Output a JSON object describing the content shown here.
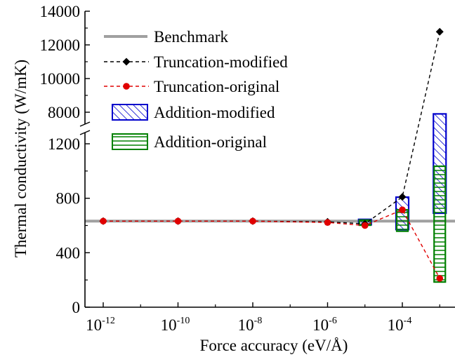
{
  "chart_data": {
    "type": "line",
    "xlabel": "Force accuracy (eV/Å)",
    "ylabel": "Thermal conductivity (W/mK)",
    "x_scale": "log",
    "x_ticks": [
      {
        "value": 1e-12,
        "base": "10",
        "exp": "-12"
      },
      {
        "value": 1e-10,
        "base": "10",
        "exp": "-10"
      },
      {
        "value": 1e-08,
        "base": "10",
        "exp": "-8"
      },
      {
        "value": 1e-06,
        "base": "10",
        "exp": "-6"
      },
      {
        "value": 0.0001,
        "base": "10",
        "exp": "-4"
      }
    ],
    "y_axis_break": true,
    "y_lower_ticks": [
      0,
      400,
      800,
      1200
    ],
    "y_upper_ticks": [
      8000,
      10000,
      12000,
      14000
    ],
    "y_lower_range": [
      0,
      1350
    ],
    "y_upper_range": [
      7300,
      14000
    ],
    "legend_position": "top-left",
    "series": [
      {
        "name": "Benchmark",
        "kind": "hline",
        "y": 632,
        "color": "#a0a0a0"
      },
      {
        "name": "Truncation-modified",
        "kind": "line-dashed",
        "marker": "diamond",
        "color": "#000000",
        "points": [
          [
            1e-12,
            632
          ],
          [
            1e-10,
            632
          ],
          [
            1e-08,
            632
          ],
          [
            1e-06,
            627
          ],
          [
            1e-05,
            612
          ],
          [
            0.0001,
            810
          ],
          [
            0.001,
            12780
          ]
        ]
      },
      {
        "name": "Truncation-original",
        "kind": "line-dashed",
        "marker": "circle",
        "color": "#e00000",
        "points": [
          [
            1e-12,
            632
          ],
          [
            1e-10,
            632
          ],
          [
            1e-08,
            632
          ],
          [
            1e-06,
            622
          ],
          [
            1e-05,
            600
          ],
          [
            0.0001,
            715
          ],
          [
            0.001,
            212
          ]
        ]
      },
      {
        "name": "Addition-modified",
        "kind": "range-box",
        "hatch": "diagonal",
        "color": "#0000cc",
        "boxes": [
          [
            1e-05,
            605,
            645
          ],
          [
            0.0001,
            570,
            808
          ],
          [
            0.001,
            690,
            7900
          ]
        ]
      },
      {
        "name": "Addition-original",
        "kind": "range-box",
        "hatch": "horizontal",
        "color": "#008000",
        "boxes": [
          [
            1e-05,
            602,
            640
          ],
          [
            0.0001,
            558,
            715
          ],
          [
            0.001,
            185,
            1035
          ]
        ]
      }
    ]
  }
}
